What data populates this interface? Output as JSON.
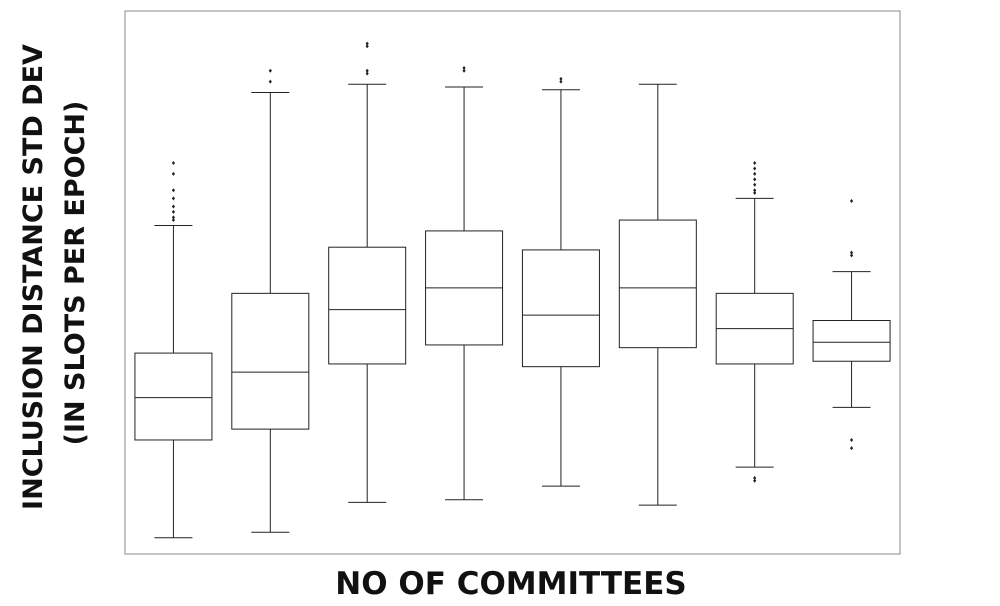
{
  "chart_data": {
    "type": "box",
    "title": "",
    "xlabel": "NO OF COMMITTEES",
    "ylabel_line1": "INCLUSION DISTANCE STD DEV",
    "ylabel_line2": "(IN SLOTS PER EPOCH)",
    "ylim": [
      0,
      100
    ],
    "grid": false,
    "tick_labels_shown": false,
    "boxes": [
      {
        "whislo": 3.0,
        "q1": 21.0,
        "med": 28.8,
        "q3": 37.0,
        "whishi": 60.5,
        "fliers": [
          61.5,
          62.0,
          63.0,
          64.0,
          65.5,
          67.0,
          70.0,
          72.0
        ]
      },
      {
        "whislo": 4.0,
        "q1": 23.0,
        "med": 33.5,
        "q3": 48.0,
        "whishi": 85.0,
        "fliers": [
          87.0,
          89.0
        ]
      },
      {
        "whislo": 9.5,
        "q1": 35.0,
        "med": 45.0,
        "q3": 56.5,
        "whishi": 86.5,
        "fliers": [
          88.5,
          89.0,
          93.5,
          94.0
        ]
      },
      {
        "whislo": 10.0,
        "q1": 38.5,
        "med": 49.0,
        "q3": 59.5,
        "whishi": 86.0,
        "fliers": [
          89.0,
          89.5
        ]
      },
      {
        "whislo": 12.5,
        "q1": 34.5,
        "med": 44.0,
        "q3": 56.0,
        "whishi": 85.5,
        "fliers": [
          87.0,
          87.5
        ]
      },
      {
        "whislo": 9.0,
        "q1": 38.0,
        "med": 49.0,
        "q3": 61.5,
        "whishi": 86.5,
        "fliers": []
      },
      {
        "whislo": 16.0,
        "q1": 35.0,
        "med": 41.5,
        "q3": 48.0,
        "whishi": 65.5,
        "fliers": [
          13.5,
          14.0,
          66.5,
          67.0,
          68.0,
          69.0,
          70.0,
          71.0,
          72.0
        ]
      },
      {
        "whislo": 27.0,
        "q1": 35.5,
        "med": 39.0,
        "q3": 43.0,
        "whishi": 52.0,
        "fliers": [
          19.5,
          21.0,
          55.0,
          55.5,
          65.0
        ]
      }
    ]
  }
}
